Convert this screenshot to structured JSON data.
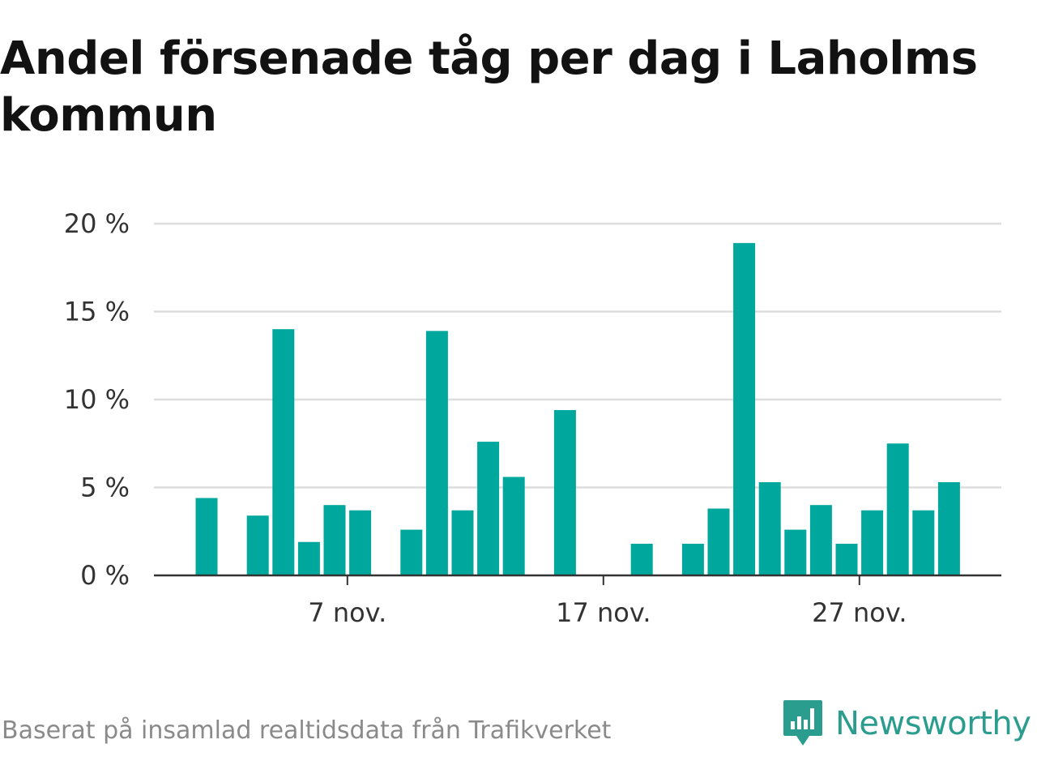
{
  "title": "Andel försenade tåg per dag i Laholms kommun",
  "source": "Baserat på insamlad realtidsdata från Trafikverket",
  "brand": {
    "name": "Newsworthy",
    "logo_icon": "newsworthy-logo-icon",
    "color": "#2a9d8f"
  },
  "colors": {
    "bar": "#00a79d",
    "grid": "#dddddd",
    "axis": "#333333"
  },
  "chart_data": {
    "type": "bar",
    "x": [
      "1 nov.",
      "2 nov.",
      "3 nov.",
      "4 nov.",
      "5 nov.",
      "6 nov.",
      "7 nov.",
      "8 nov.",
      "9 nov.",
      "10 nov.",
      "11 nov.",
      "12 nov.",
      "13 nov.",
      "14 nov.",
      "15 nov.",
      "16 nov.",
      "17 nov.",
      "18 nov.",
      "19 nov.",
      "20 nov.",
      "21 nov.",
      "22 nov.",
      "23 nov.",
      "24 nov.",
      "25 nov.",
      "26 nov.",
      "27 nov.",
      "28 nov.",
      "29 nov.",
      "30 nov."
    ],
    "values": [
      4.4,
      null,
      3.4,
      14.0,
      1.9,
      4.0,
      3.7,
      null,
      2.6,
      13.9,
      3.7,
      7.6,
      5.6,
      null,
      9.4,
      null,
      null,
      1.8,
      null,
      1.8,
      3.8,
      18.9,
      5.3,
      2.6,
      4.0,
      1.8,
      3.7,
      7.5,
      3.7,
      5.3
    ],
    "xticks": [
      "7 nov.",
      "17 nov.",
      "27 nov."
    ],
    "yticks": [
      "0 %",
      "5 %",
      "10 %",
      "15 %",
      "20 %"
    ],
    "ylim": [
      0,
      20
    ],
    "grid": true
  }
}
